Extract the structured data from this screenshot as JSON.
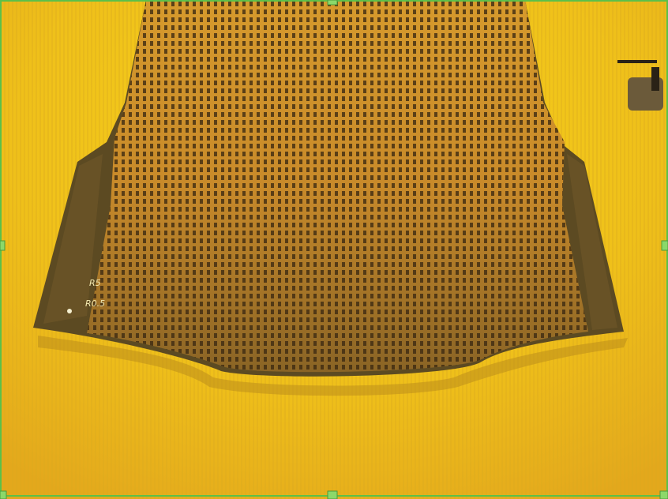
{
  "annotations": [
    "R5",
    "R0.5"
  ]
}
